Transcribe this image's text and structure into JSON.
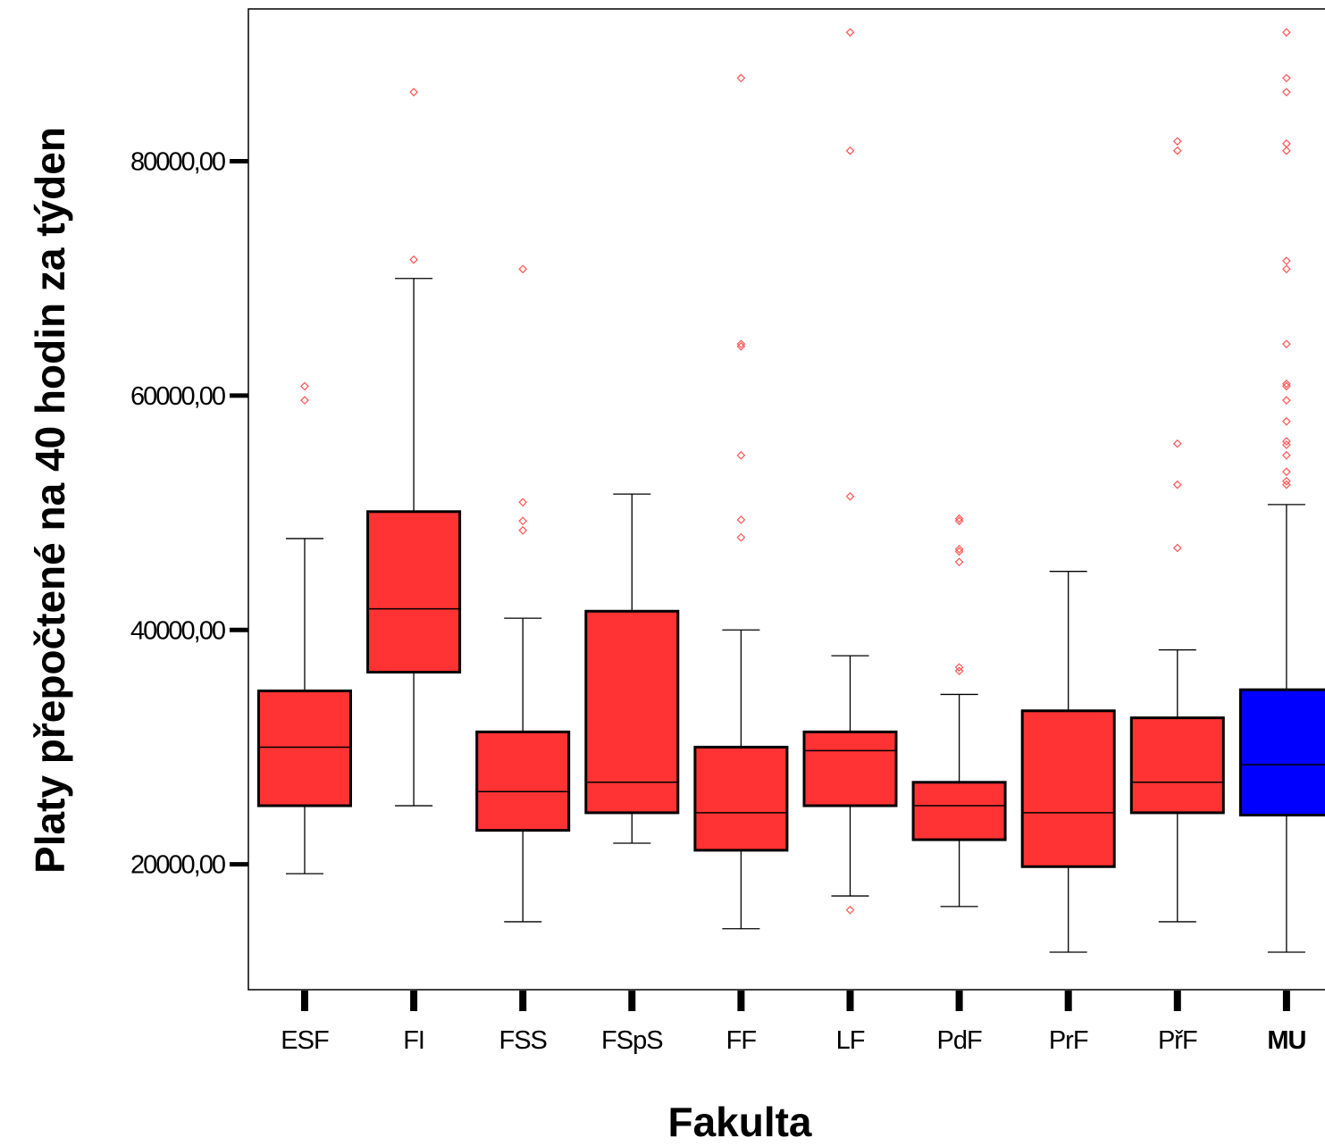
{
  "chart_data": {
    "type": "boxplot",
    "title": "",
    "xlabel": "Fakulta",
    "ylabel": "Platy přepočtené na 40 hodin za týden",
    "ylim": [
      9300,
      93000
    ],
    "y_ticks": [
      20000,
      40000,
      60000,
      80000
    ],
    "y_tick_labels": [
      "20000,00",
      "40000,00",
      "60000,00",
      "80000,00"
    ],
    "grid": false,
    "colors": {
      "faculty": "#ff3333",
      "total": "#0000ff",
      "outlier": "#ff5555",
      "stroke": "#000000"
    },
    "categories": [
      {
        "label": "ESF",
        "bold": false,
        "color": "#ff3333",
        "whisker_low": 19200,
        "q1": 25000,
        "median": 30000,
        "q3": 34800,
        "whisker_high": 47800,
        "outliers": [
          59600,
          60800
        ]
      },
      {
        "label": "FI",
        "bold": false,
        "color": "#ff3333",
        "whisker_low": 25000,
        "q1": 36400,
        "median": 41800,
        "q3": 50100,
        "whisker_high": 70000,
        "outliers": [
          71600,
          85900
        ]
      },
      {
        "label": "FSS",
        "bold": false,
        "color": "#ff3333",
        "whisker_low": 15100,
        "q1": 22900,
        "median": 26200,
        "q3": 31300,
        "whisker_high": 41000,
        "outliers": [
          48500,
          49300,
          50900,
          70800
        ]
      },
      {
        "label": "FSpS",
        "bold": false,
        "color": "#ff3333",
        "whisker_low": 21800,
        "q1": 24400,
        "median": 27000,
        "q3": 41600,
        "whisker_high": 51600,
        "outliers": []
      },
      {
        "label": "FF",
        "bold": false,
        "color": "#ff3333",
        "whisker_low": 14500,
        "q1": 21200,
        "median": 24400,
        "q3": 30000,
        "whisker_high": 40000,
        "outliers": [
          47900,
          49400,
          54900,
          64200,
          64400,
          87100
        ]
      },
      {
        "label": "LF",
        "bold": false,
        "color": "#ff3333",
        "whisker_low": 17300,
        "q1": 25000,
        "median": 29700,
        "q3": 31300,
        "whisker_high": 37800,
        "outliers": [
          16100,
          51400,
          80900,
          91000
        ]
      },
      {
        "label": "PdF",
        "bold": false,
        "color": "#ff3333",
        "whisker_low": 16400,
        "q1": 22100,
        "median": 25000,
        "q3": 27000,
        "whisker_high": 34500,
        "outliers": [
          36500,
          36800,
          45800,
          46700,
          46900,
          49300,
          49500
        ]
      },
      {
        "label": "PrF",
        "bold": false,
        "color": "#ff3333",
        "whisker_low": 12500,
        "q1": 19800,
        "median": 24400,
        "q3": 33100,
        "whisker_high": 45000,
        "outliers": []
      },
      {
        "label": "PřF",
        "bold": false,
        "color": "#ff3333",
        "whisker_low": 15100,
        "q1": 24400,
        "median": 27000,
        "q3": 32500,
        "whisker_high": 38300,
        "outliers": [
          47000,
          52400,
          55900,
          80900,
          81700
        ]
      },
      {
        "label": "MU",
        "bold": true,
        "color": "#0000ff",
        "whisker_low": 12500,
        "q1": 24200,
        "median": 28500,
        "q3": 34900,
        "whisker_high": 50700,
        "outliers": [
          52400,
          52700,
          53500,
          54900,
          55800,
          56100,
          57800,
          59600,
          60800,
          61000,
          64400,
          70800,
          71500,
          80900,
          81500,
          85900,
          87100,
          91000
        ]
      }
    ]
  }
}
